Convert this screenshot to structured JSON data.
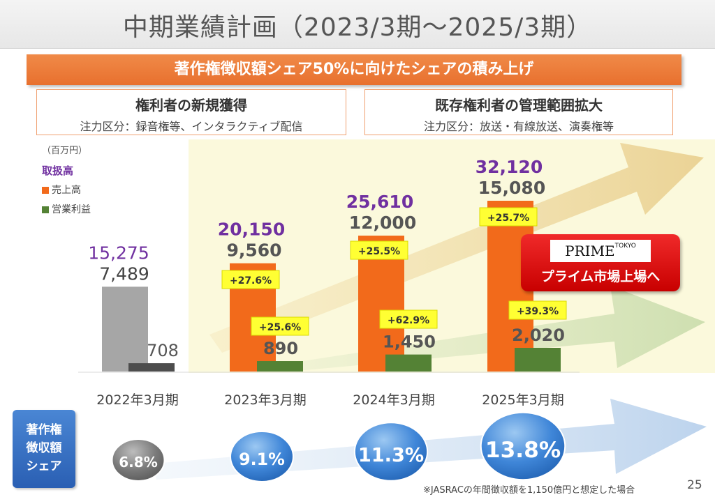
{
  "title": "中期業績計画（2023/3期〜2025/3期）",
  "banner": "著作権徴収額シェア50%に向けたシェアの積み上げ",
  "box_left": {
    "heading": "権利者の新規獲得",
    "sub": "注力区分：録音権等、インタラクティブ配信"
  },
  "box_right": {
    "heading": "既存権利者の管理範囲拡大",
    "sub": "注力区分：放送・有線放送、演奏権等"
  },
  "legend": {
    "unit": "（百万円）",
    "handling": "取扱高",
    "sales": "売上高",
    "profit": "営業利益"
  },
  "chart_data": {
    "type": "bar",
    "categories": [
      "2022年3月期",
      "2023年3月期",
      "2024年3月期",
      "2025年3月期"
    ],
    "series": [
      {
        "name": "売上高",
        "values": [
          7489,
          9560,
          12000,
          15080
        ],
        "labels": [
          "7,489",
          "9,560",
          "12,000",
          "15,080"
        ],
        "growth": [
          null,
          "+27.6%",
          "+25.5%",
          "+25.7%"
        ]
      },
      {
        "name": "営業利益",
        "values": [
          708,
          890,
          1450,
          2020
        ],
        "labels": [
          "708",
          "890",
          "1,450",
          "2,020"
        ],
        "growth": [
          null,
          "+25.6%",
          "+62.9%",
          "+39.3%"
        ]
      }
    ],
    "handling": {
      "name": "取扱高",
      "values": [
        15275,
        20150,
        25610,
        32120
      ],
      "labels": [
        "15,275",
        "20,150",
        "25,610",
        "32,120"
      ]
    },
    "share": {
      "name": "著作権徴収額シェア",
      "values": [
        6.8,
        9.1,
        11.3,
        13.8
      ],
      "labels": [
        "6.8%",
        "9.1%",
        "11.3%",
        "13.8%"
      ]
    },
    "unit": "百万円",
    "colors": {
      "sales": "#f26a1b",
      "profit": "#548235",
      "past_sales": "#a6a6a6",
      "past_profit": "#4d4d4d",
      "handling": "#7030a0",
      "badge": "#ffff33"
    }
  },
  "share_label": "著作権徴収額シェア",
  "share_label_lines": [
    "著作権",
    "徴収額",
    "シェア"
  ],
  "prime": {
    "logo": "PRIME",
    "logo_sup": "TOKYO",
    "text": "プライム市場上場へ"
  },
  "footnote": "※JASRACの年間徴収額を1,150億円と想定した場合",
  "page_number": "25"
}
